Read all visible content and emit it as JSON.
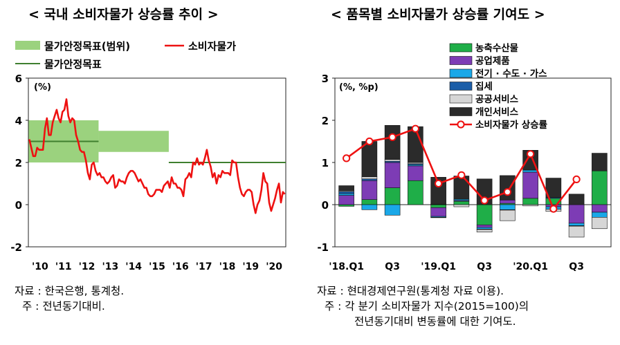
{
  "left": {
    "title": "< 국내 소비자물가 상승률 추이 >",
    "source": "자료 : 한국은행, 통계청.",
    "note": "주 : 전년동기대비."
  },
  "right": {
    "title": "< 품목별 소비자물가 상승률 기여도 >",
    "source": "자료 : 현대경제연구원(통계청 자료 이용).",
    "note_line1": "주 : 각 분기 소비자물가 지수(2015=100)의",
    "note_line2": "전년동기대비 변동률에 대한 기여도."
  },
  "colors": {
    "band": "#9bd27e",
    "cpi": "#ee1111",
    "target": "#3f7f2f",
    "agri": "#1fae48",
    "industrial": "#7d3cb5",
    "utilities": "#1aa8e8",
    "housing": "#1b5ea8",
    "public": "#d6d6d6",
    "personal": "#2b2b2b",
    "rate_line": "#ee1111"
  },
  "chart_data": [
    {
      "type": "line",
      "title": "< 국내 소비자물가 상승률 추이 >",
      "unit_label": "(%)",
      "ylim": [
        -2,
        6
      ],
      "yticks": [
        "-2",
        "0",
        "2",
        "4",
        "6"
      ],
      "x_tick_labels": [
        "'10",
        "'11",
        "'12",
        "'13",
        "'14",
        "'15",
        "'16",
        "'17",
        "'18",
        "'19",
        "'20"
      ],
      "legend": {
        "band": "물가안정목표(범위)",
        "line": "소비자물가",
        "target": "물가안정목표"
      },
      "target_bands": [
        {
          "from": "2010-01",
          "to": "2012-12",
          "low": 2.0,
          "high": 4.0
        },
        {
          "from": "2013-01",
          "to": "2015-12",
          "low": 2.5,
          "high": 3.5
        }
      ],
      "target_lines": [
        {
          "from": "2010-01",
          "to": "2012-12",
          "value": 3.0
        },
        {
          "from": "2016-01",
          "to": "2020-12",
          "value": 2.0
        }
      ],
      "series": [
        {
          "name": "소비자물가",
          "start": "2010-01",
          "frequency": "monthly",
          "values": [
            3.1,
            2.7,
            2.3,
            2.3,
            2.7,
            2.6,
            2.6,
            2.6,
            3.6,
            4.1,
            3.3,
            3.3,
            3.9,
            4.2,
            4.5,
            4.1,
            3.9,
            4.4,
            4.5,
            5.0,
            4.2,
            3.9,
            4.1,
            4.0,
            3.3,
            3.0,
            2.6,
            2.5,
            2.5,
            2.1,
            1.5,
            1.2,
            1.9,
            2.0,
            1.6,
            1.4,
            1.5,
            1.3,
            1.3,
            1.1,
            1.0,
            1.1,
            1.3,
            1.4,
            0.8,
            0.9,
            1.2,
            1.1,
            1.1,
            1.0,
            1.3,
            1.5,
            1.6,
            1.6,
            1.5,
            1.3,
            1.1,
            1.2,
            1.0,
            0.8,
            0.8,
            0.5,
            0.4,
            0.4,
            0.5,
            0.7,
            0.7,
            0.7,
            0.6,
            0.9,
            1.0,
            1.1,
            0.8,
            1.3,
            1.0,
            1.0,
            0.8,
            0.8,
            0.7,
            0.4,
            1.2,
            1.3,
            1.5,
            1.3,
            2.0,
            1.9,
            2.2,
            1.9,
            2.0,
            1.9,
            2.2,
            2.6,
            2.1,
            1.8,
            1.3,
            1.5,
            1.0,
            1.4,
            1.3,
            1.6,
            1.5,
            1.5,
            1.5,
            1.4,
            2.1,
            2.0,
            2.0,
            1.3,
            0.8,
            0.5,
            0.4,
            0.6,
            0.7,
            0.7,
            0.6,
            0.0,
            -0.4,
            0.0,
            0.2,
            0.7,
            1.5,
            1.1,
            1.0,
            0.1,
            -0.3,
            0.0,
            0.3,
            0.7,
            1.0,
            0.1,
            0.6,
            0.5
          ]
        }
      ]
    },
    {
      "type": "bar",
      "title": "< 품목별 소비자물가 상승률 기여도 >",
      "unit_label": "(%, %p)",
      "ylim": [
        -1,
        3
      ],
      "yticks": [
        "-1",
        "0",
        "1",
        "2",
        "3"
      ],
      "categories": [
        "'18.Q1",
        "Q2",
        "Q3",
        "Q4",
        "'19.Q1",
        "Q2",
        "Q3",
        "Q4",
        "'20.Q1",
        "Q2",
        "Q3",
        "Q4"
      ],
      "x_tick_labels": [
        "'18.Q1",
        "Q3",
        "'19.Q1",
        "Q3",
        "'20.Q1",
        "Q3"
      ],
      "series": [
        {
          "name": "농축수산물",
          "values": [
            -0.04,
            0.12,
            0.4,
            0.57,
            -0.07,
            0.08,
            -0.48,
            0.03,
            0.15,
            0.15,
            0.0,
            0.8
          ]
        },
        {
          "name": "공업제품",
          "values": [
            0.22,
            0.45,
            0.6,
            0.35,
            -0.21,
            0.02,
            -0.06,
            0.08,
            0.62,
            -0.05,
            -0.44,
            -0.18
          ]
        },
        {
          "name": "전기 · 수도 · 가스",
          "values": [
            0.04,
            -0.12,
            -0.25,
            0.03,
            -0.02,
            0.03,
            -0.04,
            -0.12,
            0.05,
            -0.06,
            -0.06,
            -0.12
          ]
        },
        {
          "name": "집세",
          "values": [
            0.05,
            0.04,
            0.03,
            0.02,
            0.01,
            0.0,
            -0.01,
            -0.01,
            0.0,
            0.02,
            -0.01,
            0.0
          ]
        },
        {
          "name": "공공서비스",
          "values": [
            0.02,
            0.05,
            0.04,
            0.03,
            -0.01,
            -0.05,
            -0.06,
            -0.25,
            -0.03,
            -0.05,
            -0.26,
            -0.27
          ]
        },
        {
          "name": "개인서비스",
          "values": [
            0.12,
            0.84,
            0.81,
            0.85,
            0.64,
            0.55,
            0.61,
            0.58,
            0.47,
            0.46,
            0.25,
            0.42
          ]
        }
      ],
      "line": {
        "name": "소비자물가 상승률",
        "values": [
          1.1,
          1.5,
          1.6,
          1.8,
          0.5,
          0.7,
          0.1,
          0.3,
          1.2,
          -0.1,
          0.6,
          null
        ]
      }
    }
  ]
}
